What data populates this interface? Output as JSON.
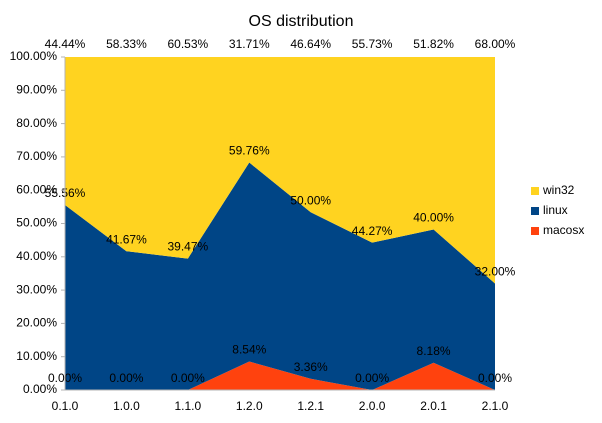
{
  "chart_data": {
    "type": "stacked_area",
    "title": "OS distribution",
    "categories": [
      "0.1.0",
      "1.0.0",
      "1.1.0",
      "1.2.0",
      "1.2.1",
      "2.0.0",
      "2.0.1",
      "2.1.0"
    ],
    "series": [
      {
        "name": "macosx",
        "color": "#ff420e",
        "values": [
          0,
          0,
          0,
          8.54,
          3.36,
          0,
          8.18,
          0
        ],
        "value_labels": [
          "0.00%",
          "0.00%",
          "0.00%",
          "8.54%",
          "3.36%",
          "0.00%",
          "8.18%",
          "0.00%"
        ]
      },
      {
        "name": "linux",
        "color": "#004586",
        "values": [
          55.56,
          41.67,
          39.47,
          59.76,
          50.0,
          44.27,
          40.0,
          32.0
        ],
        "value_labels": [
          "55.56%",
          "41.67%",
          "39.47%",
          "59.76%",
          "50.00%",
          "44.27%",
          "40.00%",
          "32.00%"
        ]
      },
      {
        "name": "win32",
        "color": "#ffd320",
        "values": [
          44.44,
          58.33,
          60.53,
          31.71,
          46.64,
          55.73,
          51.82,
          68.0
        ],
        "value_labels": [
          "44.44%",
          "58.33%",
          "60.53%",
          "31.71%",
          "46.64%",
          "55.73%",
          "51.82%",
          "68.00%"
        ]
      }
    ],
    "ylim": [
      0,
      100
    ],
    "yticks": [
      {
        "value": 0,
        "label": "0.00%"
      },
      {
        "value": 10,
        "label": "10.00%"
      },
      {
        "value": 20,
        "label": "20.00%"
      },
      {
        "value": 30,
        "label": "30.00%"
      },
      {
        "value": 40,
        "label": "40.00%"
      },
      {
        "value": 50,
        "label": "50.00%"
      },
      {
        "value": 60,
        "label": "60.00%"
      },
      {
        "value": 70,
        "label": "70.00%"
      },
      {
        "value": 80,
        "label": "80.00%"
      },
      {
        "value": 90,
        "label": "90.00%"
      },
      {
        "value": 100,
        "label": "100.00%"
      }
    ],
    "legend": "right"
  }
}
